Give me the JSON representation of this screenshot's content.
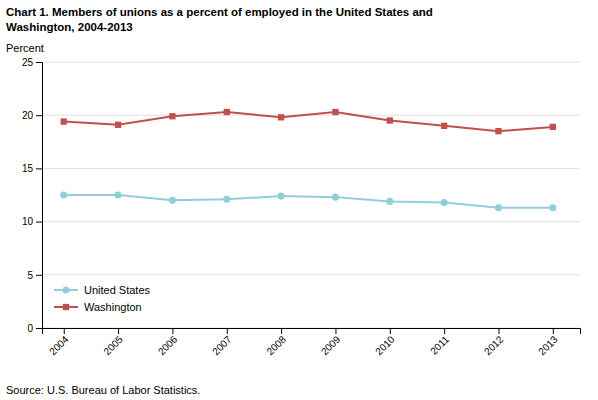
{
  "chart_data": {
    "type": "line",
    "title": [
      "Chart 1. Members of unions as a percent of employed in the United States and",
      "Washington, 2004-2013"
    ],
    "y_label": "Percent",
    "annotations": [
      "Source: U.S. Bureau of Labor Statistics."
    ],
    "x": [
      2004,
      2005,
      2006,
      2007,
      2008,
      2009,
      2010,
      2011,
      2012,
      2013
    ],
    "series": [
      {
        "name": "United States",
        "color": "#92CDDC",
        "marker": "circle",
        "values": [
          12.5,
          12.5,
          12.0,
          12.1,
          12.4,
          12.3,
          11.9,
          11.8,
          11.3,
          11.3
        ]
      },
      {
        "name": "Washington",
        "color": "#C0504D",
        "marker": "square",
        "values": [
          19.4,
          19.1,
          19.9,
          20.3,
          19.8,
          20.3,
          19.5,
          19.0,
          18.5,
          18.9
        ]
      }
    ],
    "xlim": [
      2003.6,
      2013.5
    ],
    "xticks": [
      2004,
      2005,
      2006,
      2007,
      2008,
      2009,
      2010,
      2011,
      2012,
      2013
    ],
    "ylim": [
      0,
      25
    ],
    "yticks": [
      0,
      5,
      10,
      15,
      20,
      25
    ],
    "grid": "y",
    "legend": "lower left"
  }
}
